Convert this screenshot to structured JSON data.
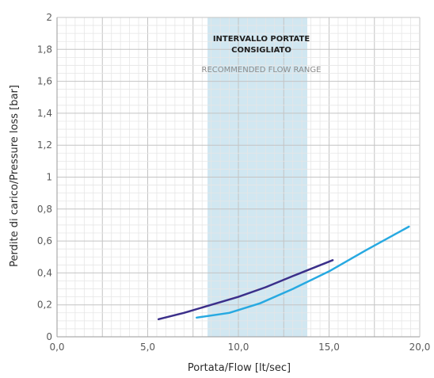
{
  "chart_data": {
    "type": "line",
    "xlabel": "Portata/Flow [lt/sec]",
    "ylabel": "Perdite di carico/Pressure loss [bar]",
    "xlim": [
      0,
      20
    ],
    "ylim": [
      0,
      2
    ],
    "x_ticks": [
      "0,0",
      "5,0",
      "10,0",
      "15,0",
      "20,0"
    ],
    "y_ticks": [
      "0",
      "0,2",
      "0,4",
      "0,6",
      "0,8",
      "1",
      "1,2",
      "1,4",
      "1,6",
      "1,8",
      "2"
    ],
    "grid": true,
    "recommended_range": {
      "x": [
        8.3,
        13.8
      ],
      "title_line1": "INTERVALLO PORTATE",
      "title_line2": "CONSIGLIATO",
      "subtitle": "RECOMMENDED FLOW RANGE",
      "color": "#c9e3ee"
    },
    "series": [
      {
        "color": "#3b2f8a",
        "x": [
          5.6,
          7.0,
          8.5,
          10.0,
          11.5,
          13.0,
          15.2
        ],
        "y": [
          0.11,
          0.15,
          0.2,
          0.25,
          0.31,
          0.38,
          0.48
        ]
      },
      {
        "color": "#27a9e1",
        "x": [
          7.7,
          9.5,
          11.2,
          13.0,
          15.0,
          17.0,
          19.4
        ],
        "y": [
          0.12,
          0.15,
          0.21,
          0.3,
          0.41,
          0.54,
          0.69
        ]
      }
    ]
  }
}
